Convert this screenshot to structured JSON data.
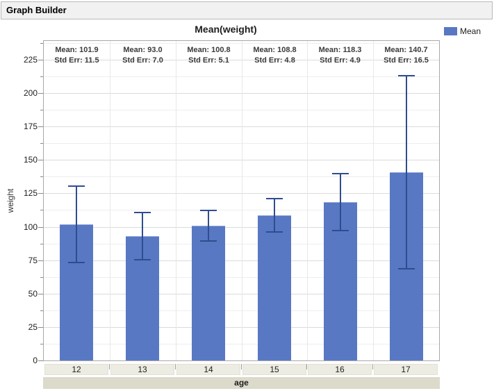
{
  "window": {
    "outline_title": "Graph Builder"
  },
  "colors": {
    "bar_fill": "#5878c4",
    "error_bar": "#2e4d8f",
    "grid_major": "#dbdbdb",
    "grid_minor": "#eeeeee",
    "grid_vertical": "#e7e7e7",
    "axis_border": "#a8a8a8",
    "category_box_bg": "#edece2",
    "axis_strip_bg": "#dcdacb",
    "outline_bar_bg": "#f1f1f1"
  },
  "chart_data": {
    "type": "bar",
    "title": "Mean(weight)",
    "xlabel": "age",
    "ylabel": "weight",
    "ylim": [
      0,
      239
    ],
    "grid": true,
    "y_tick_labels": [
      "0",
      "25",
      "50",
      "75",
      "100",
      "125",
      "150",
      "175",
      "200",
      "225"
    ],
    "y_major_step": 25,
    "y_minor_step": 12.5,
    "categories": [
      "12",
      "13",
      "14",
      "15",
      "16",
      "17"
    ],
    "series": [
      {
        "name": "Mean",
        "values": [
          101.9,
          93.0,
          100.8,
          108.8,
          118.3,
          140.7
        ]
      }
    ],
    "std_err": [
      11.5,
      7.0,
      5.1,
      4.8,
      4.9,
      16.5
    ],
    "error_bars": {
      "kind": "confidence interval whiskers with caps",
      "low": [
        73.5,
        75.4,
        89.3,
        96.3,
        96.9,
        68.5
      ],
      "high": [
        130.2,
        110.6,
        112.3,
        121.3,
        139.7,
        212.9
      ]
    },
    "annotations": [
      [
        "Mean: 101.9",
        "Std Err: 11.5"
      ],
      [
        "Mean: 93.0",
        "Std Err: 7.0"
      ],
      [
        "Mean: 100.8",
        "Std Err: 5.1"
      ],
      [
        "Mean: 108.8",
        "Std Err: 4.8"
      ],
      [
        "Mean: 118.3",
        "Std Err: 4.9"
      ],
      [
        "Mean: 140.7",
        "Std Err: 16.5"
      ]
    ],
    "legend": {
      "position": "top-right",
      "entries": [
        {
          "label": "Mean",
          "color": "#5878c4"
        }
      ]
    }
  }
}
